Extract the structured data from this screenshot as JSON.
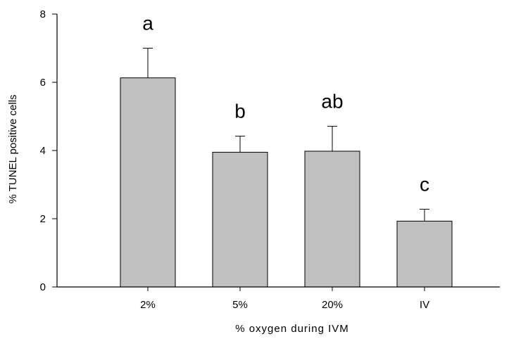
{
  "chart_data": {
    "type": "bar",
    "title": "",
    "xlabel": "% oxygen during IVM",
    "ylabel": "% TUNEL positive cells",
    "categories": [
      "2%",
      "5%",
      "20%",
      "IV"
    ],
    "values": [
      6.13,
      3.95,
      3.98,
      1.93
    ],
    "error_upper": [
      0.87,
      0.47,
      0.73,
      0.35
    ],
    "significance_labels": [
      "a",
      "b",
      "ab",
      "c"
    ],
    "ylim": [
      0,
      8
    ],
    "yticks": [
      "0",
      "2",
      "4",
      "6",
      "8"
    ],
    "grid": false,
    "legend": "none",
    "colors": {
      "bar_fill": "#c0c0c0",
      "bar_stroke": "#000000",
      "axis": "#000000"
    }
  }
}
